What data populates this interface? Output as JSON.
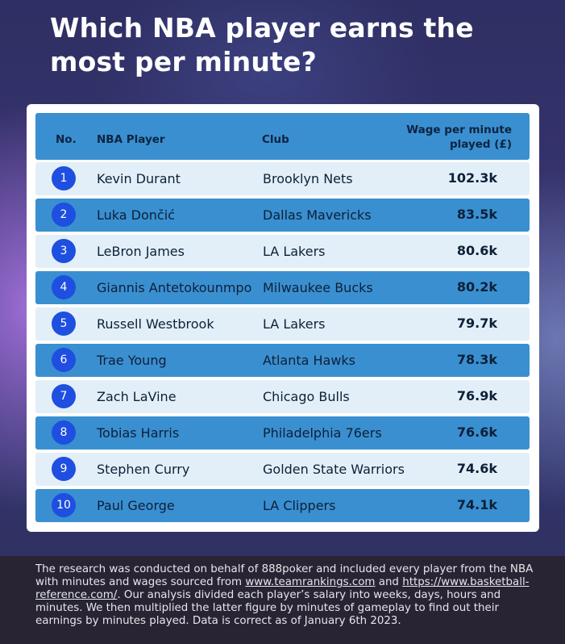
{
  "title": "Which NBA player earns the most per minute?",
  "table": {
    "headers": {
      "no": "No.",
      "player": "NBA Player",
      "club": "Club",
      "wage_line1": "Wage per minute",
      "wage_line2": "played (£)"
    },
    "rows": [
      {
        "no": "1",
        "player": "Kevin Durant",
        "club": "Brooklyn Nets",
        "wage": "102.3k"
      },
      {
        "no": "2",
        "player": "Luka Dončić",
        "club": "Dallas Mavericks",
        "wage": "83.5k"
      },
      {
        "no": "3",
        "player": "LeBron James",
        "club": "LA Lakers",
        "wage": "80.6k"
      },
      {
        "no": "4",
        "player": "Giannis Antetokounmpo",
        "club": "Milwaukee Bucks",
        "wage": "80.2k"
      },
      {
        "no": "5",
        "player": "Russell Westbrook",
        "club": "LA Lakers",
        "wage": "79.7k"
      },
      {
        "no": "6",
        "player": "Trae Young",
        "club": "Atlanta Hawks",
        "wage": "78.3k"
      },
      {
        "no": "7",
        "player": "Zach LaVine",
        "club": "Chicago Bulls",
        "wage": "76.9k"
      },
      {
        "no": "8",
        "player": "Tobias Harris",
        "club": "Philadelphia 76ers",
        "wage": "76.6k"
      },
      {
        "no": "9",
        "player": "Stephen Curry",
        "club": "Golden State Warriors",
        "wage": "74.6k"
      },
      {
        "no": "10",
        "player": "Paul George",
        "club": "LA Clippers",
        "wage": "74.1k"
      }
    ]
  },
  "footer": {
    "text_1": "The research was conducted on behalf of 888poker and included every player from the NBA with minutes and wages sourced from ",
    "link_1": "www.teamrankings.com",
    "text_2": " and ",
    "link_2": "https://www.basketball-reference.com/",
    "text_3": ". Our analysis divided each player’s salary into weeks, days, hours and minutes. We then multiplied the latter figure by minutes of gameplay to find out their earnings by minutes played. Data is correct as of January 6th 2023."
  },
  "colors": {
    "header_blue": "#3a8fd0",
    "row_light": "#e3eff8",
    "badge_blue": "#1e4fe0"
  }
}
